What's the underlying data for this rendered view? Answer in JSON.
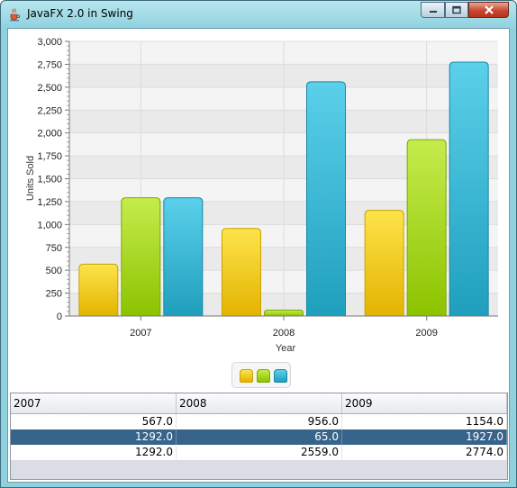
{
  "window": {
    "title": "JavaFX 2.0 in Swing"
  },
  "colors": {
    "series_2007": "#f2cc14",
    "series_2008": "#a6d52a",
    "series_2009": "#3fbcd8",
    "selection": "#37648a"
  },
  "icons": {
    "app": "java-cup-icon",
    "minimize": "minimize-icon",
    "maximize": "maximize-icon",
    "close": "close-icon"
  },
  "chart_data": {
    "type": "bar",
    "categories": [
      "2007",
      "2008",
      "2009"
    ],
    "series": [
      {
        "values": [
          567,
          956,
          1154
        ]
      },
      {
        "values": [
          1292,
          65,
          1927
        ]
      },
      {
        "values": [
          1292,
          2559,
          2774
        ]
      }
    ],
    "xlabel": "Year",
    "ylabel": "Units Sold",
    "ylim": [
      0,
      3000
    ],
    "yticks": [
      "0",
      "250",
      "500",
      "750",
      "1,000",
      "1,250",
      "1,500",
      "1,750",
      "2,000",
      "2,250",
      "2,500",
      "2,750",
      "3,000"
    ],
    "grid": true,
    "legend": "bottom"
  },
  "table": {
    "columns": [
      "2007",
      "2008",
      "2009"
    ],
    "rows": [
      [
        "567.0",
        "956.0",
        "1154.0"
      ],
      [
        "1292.0",
        "65.0",
        "1927.0"
      ],
      [
        "1292.0",
        "2559.0",
        "2774.0"
      ]
    ],
    "selected_row": 1
  }
}
